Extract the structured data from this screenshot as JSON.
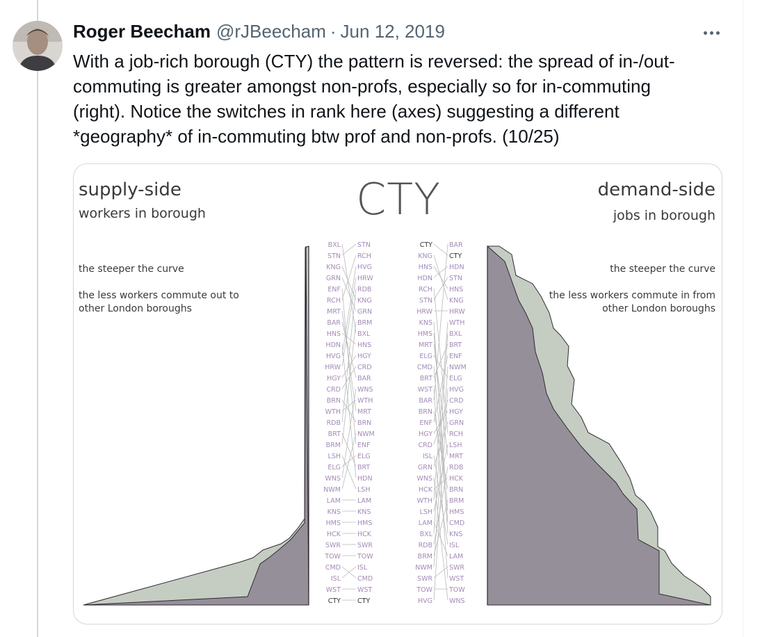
{
  "tweet": {
    "author_name": "Roger Beecham",
    "author_handle": "@rJBeecham",
    "separator": "·",
    "date": "Jun 12, 2019",
    "lines": [
      "With a job-rich borough (CTY) the pattern is reversed: the spread of in-/out-",
      "commuting is greater amongst non-profs, especially so for in-commuting",
      "(right). Notice the switches in rank here (axes) suggesting a different",
      "*geography* of in-commuting btw prof and non-profs. (10/25)"
    ]
  },
  "figure": {
    "center_title": "CTY",
    "left": {
      "title": "supply-side",
      "subtitle": "workers in borough",
      "note1": "the steeper the curve",
      "note2_line1": "the less workers commute out to",
      "note2_line2": "other London boroughs"
    },
    "right": {
      "title": "demand-side",
      "subtitle": "jobs in borough",
      "note1": "the steeper the curve",
      "note2_line1": "the less workers commute in from",
      "note2_line2": "other London boroughs"
    },
    "colors": {
      "dark_area": "#958f99",
      "light_area": "#c5cdc2",
      "outline": "#2e2a33",
      "label_purple": "#a48ab6",
      "label_grey": "#9a9a9a",
      "highlight": "#333333"
    },
    "slope_left": {
      "col_a": [
        "BXL",
        "STN",
        "KNG",
        "GRN",
        "ENF",
        "RCH",
        "MRT",
        "BAR",
        "HNS",
        "HDN",
        "HVG",
        "HRW",
        "HGY",
        "CRD",
        "BRN",
        "WTH",
        "RDB",
        "BRT",
        "BRM",
        "LSH",
        "ELG",
        "WNS",
        "NWM",
        "LAM",
        "KNS",
        "HMS",
        "HCK",
        "SWR",
        "TOW",
        "CMD",
        "ISL",
        "WST",
        "CTY"
      ],
      "col_b": [
        "STN",
        "RCH",
        "HVG",
        "HRW",
        "RDB",
        "KNG",
        "GRN",
        "BRM",
        "BXL",
        "HNS",
        "HGY",
        "CRD",
        "BAR",
        "WNS",
        "WTH",
        "MRT",
        "BRN",
        "NWM",
        "ENF",
        "ELG",
        "BRT",
        "HDN",
        "LSH",
        "LAM",
        "KNS",
        "HMS",
        "HCK",
        "SWR",
        "TOW",
        "ISL",
        "CMD",
        "WST",
        "CTY"
      ]
    },
    "slope_right": {
      "col_a": [
        "CTY",
        "KNG",
        "HNS",
        "HDN",
        "RCH",
        "STN",
        "HRW",
        "KNS",
        "HMS",
        "MRT",
        "ELG",
        "CMD",
        "BRT",
        "WST",
        "BAR",
        "BRN",
        "ENF",
        "HGY",
        "CRD",
        "ISL",
        "GRN",
        "WNS",
        "HCK",
        "WTH",
        "LSH",
        "LAM",
        "BXL",
        "RDB",
        "BRM",
        "NWM",
        "SWR",
        "TOW",
        "HVG"
      ],
      "col_b": [
        "BAR",
        "CTY",
        "HDN",
        "STN",
        "HNS",
        "KNG",
        "HRW",
        "WTH",
        "BXL",
        "BRT",
        "ENF",
        "NWM",
        "ELG",
        "HVG",
        "CRD",
        "HGY",
        "GRN",
        "RCH",
        "LSH",
        "MRT",
        "RDB",
        "HCK",
        "BRN",
        "BRM",
        "HMS",
        "CMD",
        "KNS",
        "ISL",
        "LAM",
        "SWR",
        "WST",
        "TOW",
        "WNS"
      ]
    }
  }
}
